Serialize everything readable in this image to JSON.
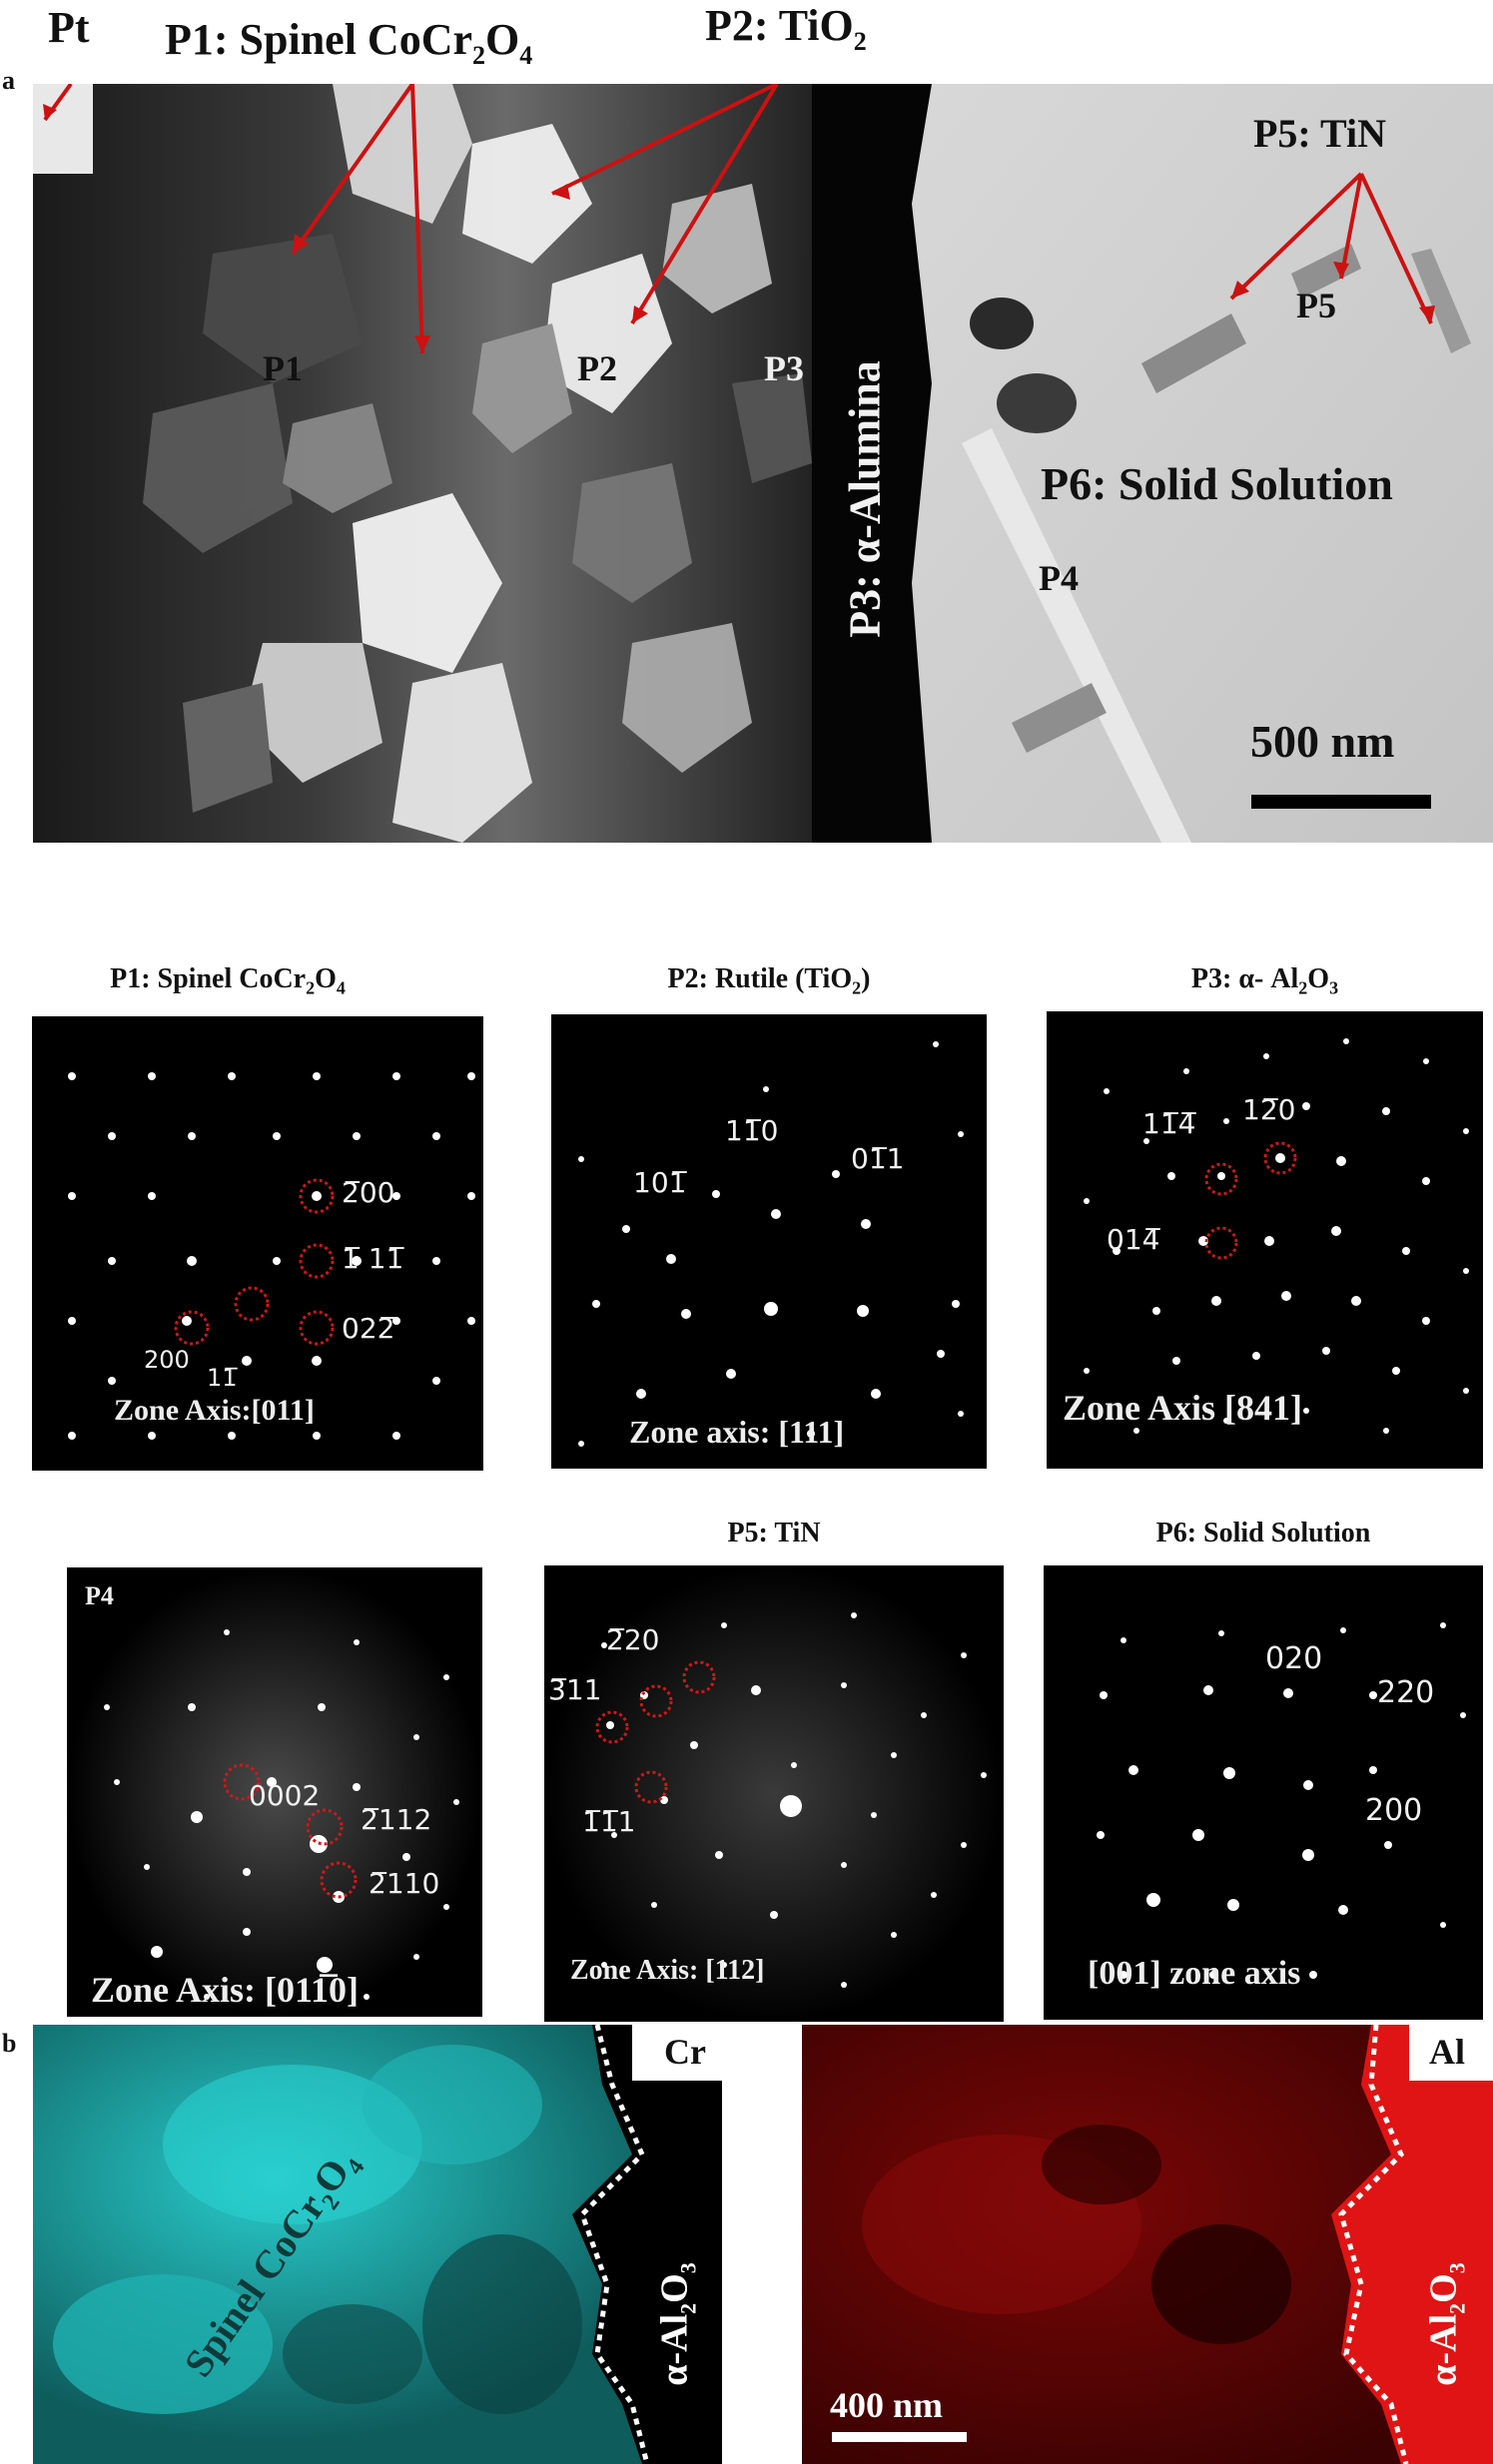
{
  "panel_a": {
    "label": "a",
    "pt_label": "Pt",
    "annotations": {
      "p1_title": "P1: Spinel CoCr",
      "p1_sub1": "2",
      "p1_mid": "O",
      "p1_sub2": "4",
      "p2_title": "P2: TiO",
      "p2_sub": "2",
      "p5_title": "P5: TiN",
      "p1": "P1",
      "p2": "P2",
      "p3": "P3",
      "p3_vertical": "P3: α-Alumina",
      "p4": "P4",
      "p5": "P5",
      "p6": "P6: Solid Solution"
    },
    "scale_bar": "500 nm",
    "colors": {
      "arrow": "#cc1111",
      "alumina_band": "#050505"
    }
  },
  "saed_panels": [
    {
      "title": "P1: Spinel CoCr",
      "title_sub1": "2",
      "title_mid": "O",
      "title_sub2": "4",
      "zone": "Zone Axis:[011]",
      "indices": [
        "2̅00",
        "1̅ 11̅",
        "200",
        "11̅",
        "022̅"
      ]
    },
    {
      "title": "P2: Rutile (TiO",
      "title_sub": "2",
      "title_end": ")",
      "zone": "Zone axis: [111]",
      "indices": [
        "11̅0",
        "101̅",
        "01̅1"
      ]
    },
    {
      "title": "P3: α- Al",
      "title_sub1": "2",
      "title_mid": "O",
      "title_sub2": "3",
      "zone": "Zone Axis [841]",
      "indices": [
        "11̅4̅",
        "12̅0",
        "014̅"
      ]
    },
    {
      "corner": "P4",
      "zone": "Zone Axis: [011̅0]",
      "indices": [
        "0002",
        "2̅112",
        "2̅110"
      ]
    },
    {
      "title": "P5: TiN",
      "zone": "Zone Axis: [112]",
      "indices": [
        "2̅20",
        "3̅11",
        "1̅1̅1"
      ]
    },
    {
      "title": "P6: Solid Solution",
      "zone": "[001] zone axis",
      "indices": [
        "020",
        "220",
        "200"
      ]
    }
  ],
  "panel_b": {
    "label": "b",
    "cr_map": {
      "element": "Cr",
      "phase_left": "Spinel CoCr",
      "pl_sub1": "2",
      "pl_mid": "O",
      "pl_sub2": "4",
      "phase_right": "α-Al",
      "pr_sub1": "2",
      "pr_mid": "O",
      "pr_sub2": "3",
      "color": "#19b8b8"
    },
    "al_map": {
      "element": "Al",
      "phase_right": "α-Al",
      "pr_sub1": "2",
      "pr_mid": "O",
      "pr_sub2": "3",
      "scale_bar": "400 nm",
      "color": "#c01010"
    }
  }
}
